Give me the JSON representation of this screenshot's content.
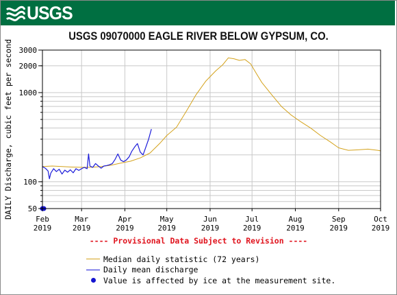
{
  "header": {
    "logo_text": "USGS",
    "banner_color": "#006f41"
  },
  "chart_data": {
    "type": "line",
    "title": "USGS 09070000 EAGLE RIVER BELOW GYPSUM, CO.",
    "ylabel": "DAILY Discharge, cubic feet per second",
    "xlabel": "",
    "y_scale": "log",
    "ylim": [
      50,
      3000
    ],
    "xlim": [
      "2019-02-01",
      "2019-10-01"
    ],
    "y_ticks": [
      {
        "value": 50,
        "label": "50"
      },
      {
        "value": 100,
        "label": "100"
      },
      {
        "value": 1000,
        "label": "1000"
      },
      {
        "value": 2000,
        "label": "2000"
      },
      {
        "value": 3000,
        "label": "3000"
      }
    ],
    "x_ticks": [
      {
        "date": "2019-02-01",
        "month": "Feb",
        "year": "2019"
      },
      {
        "date": "2019-03-01",
        "month": "Mar",
        "year": "2019"
      },
      {
        "date": "2019-04-01",
        "month": "Apr",
        "year": "2019"
      },
      {
        "date": "2019-05-01",
        "month": "May",
        "year": "2019"
      },
      {
        "date": "2019-06-01",
        "month": "Jun",
        "year": "2019"
      },
      {
        "date": "2019-07-01",
        "month": "Jul",
        "year": "2019"
      },
      {
        "date": "2019-08-01",
        "month": "Aug",
        "year": "2019"
      },
      {
        "date": "2019-09-01",
        "month": "Sep",
        "year": "2019"
      },
      {
        "date": "2019-10-01",
        "month": "Oct",
        "year": "2019"
      }
    ],
    "grid": true,
    "series": [
      {
        "name": "Median daily statistic (72 years)",
        "color": "#d4a21b",
        "points": [
          [
            "2019-02-01",
            148
          ],
          [
            "2019-02-08",
            150
          ],
          [
            "2019-02-15",
            148
          ],
          [
            "2019-02-22",
            146
          ],
          [
            "2019-03-01",
            145
          ],
          [
            "2019-03-08",
            145
          ],
          [
            "2019-03-15",
            148
          ],
          [
            "2019-03-22",
            153
          ],
          [
            "2019-03-29",
            162
          ],
          [
            "2019-04-05",
            170
          ],
          [
            "2019-04-12",
            185
          ],
          [
            "2019-04-19",
            210
          ],
          [
            "2019-04-26",
            270
          ],
          [
            "2019-05-01",
            330
          ],
          [
            "2019-05-08",
            410
          ],
          [
            "2019-05-15",
            620
          ],
          [
            "2019-05-22",
            950
          ],
          [
            "2019-05-29",
            1350
          ],
          [
            "2019-06-05",
            1750
          ],
          [
            "2019-06-10",
            2050
          ],
          [
            "2019-06-14",
            2450
          ],
          [
            "2019-06-18",
            2400
          ],
          [
            "2019-06-22",
            2300
          ],
          [
            "2019-06-26",
            2350
          ],
          [
            "2019-06-30",
            2100
          ],
          [
            "2019-07-04",
            1650
          ],
          [
            "2019-07-08",
            1300
          ],
          [
            "2019-07-15",
            950
          ],
          [
            "2019-07-22",
            700
          ],
          [
            "2019-07-29",
            560
          ],
          [
            "2019-08-05",
            470
          ],
          [
            "2019-08-12",
            400
          ],
          [
            "2019-08-19",
            330
          ],
          [
            "2019-08-26",
            280
          ],
          [
            "2019-09-01",
            240
          ],
          [
            "2019-09-08",
            225
          ],
          [
            "2019-09-15",
            228
          ],
          [
            "2019-09-22",
            232
          ],
          [
            "2019-09-29",
            225
          ],
          [
            "2019-10-01",
            222
          ]
        ]
      },
      {
        "name": "Daily mean discharge",
        "color": "#1a1ad9",
        "points": [
          [
            "2019-02-01",
            148
          ],
          [
            "2019-02-03",
            142
          ],
          [
            "2019-02-05",
            132
          ],
          [
            "2019-02-06",
            108
          ],
          [
            "2019-02-07",
            125
          ],
          [
            "2019-02-09",
            140
          ],
          [
            "2019-02-11",
            130
          ],
          [
            "2019-02-13",
            138
          ],
          [
            "2019-02-15",
            122
          ],
          [
            "2019-02-17",
            135
          ],
          [
            "2019-02-19",
            128
          ],
          [
            "2019-02-21",
            136
          ],
          [
            "2019-02-23",
            126
          ],
          [
            "2019-02-25",
            140
          ],
          [
            "2019-02-27",
            134
          ],
          [
            "2019-03-01",
            140
          ],
          [
            "2019-03-03",
            145
          ],
          [
            "2019-03-05",
            140
          ],
          [
            "2019-03-06",
            205
          ],
          [
            "2019-03-07",
            150
          ],
          [
            "2019-03-09",
            145
          ],
          [
            "2019-03-11",
            160
          ],
          [
            "2019-03-13",
            150
          ],
          [
            "2019-03-15",
            142
          ],
          [
            "2019-03-17",
            150
          ],
          [
            "2019-03-19",
            152
          ],
          [
            "2019-03-21",
            155
          ],
          [
            "2019-03-23",
            160
          ],
          [
            "2019-03-25",
            178
          ],
          [
            "2019-03-27",
            205
          ],
          [
            "2019-03-29",
            175
          ],
          [
            "2019-03-31",
            168
          ],
          [
            "2019-04-02",
            175
          ],
          [
            "2019-04-04",
            190
          ],
          [
            "2019-04-06",
            220
          ],
          [
            "2019-04-08",
            245
          ],
          [
            "2019-04-10",
            268
          ],
          [
            "2019-04-12",
            215
          ],
          [
            "2019-04-14",
            200
          ],
          [
            "2019-04-16",
            245
          ],
          [
            "2019-04-18",
            300
          ],
          [
            "2019-04-20",
            390
          ]
        ]
      }
    ],
    "ice_points": [
      [
        "2019-02-01",
        50
      ],
      [
        "2019-02-02",
        50
      ]
    ],
    "notice": "---- Provisional Data Subject to Revision ----",
    "legend": [
      {
        "label": "Median daily statistic (72 years)",
        "kind": "line",
        "color": "#d4a21b"
      },
      {
        "label": "Daily mean discharge",
        "kind": "line",
        "color": "#1a1ad9"
      },
      {
        "label": "Value is affected by ice at the measurement site.",
        "kind": "dot",
        "color": "#1414d0"
      }
    ]
  }
}
